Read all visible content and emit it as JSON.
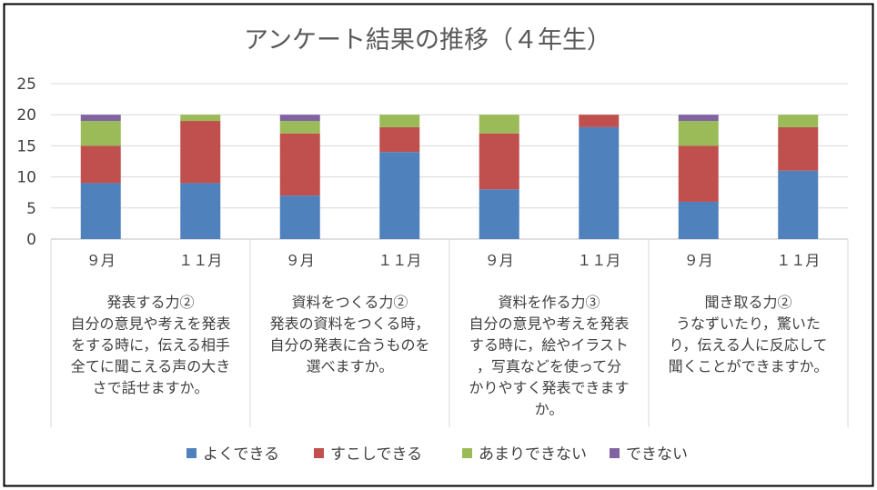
{
  "chart_data": {
    "type": "bar",
    "stacked": true,
    "title": "アンケート結果の推移（４年生）",
    "xlabel": "",
    "ylabel": "",
    "ylim": [
      0,
      25
    ],
    "yticks": [
      0,
      5,
      10,
      15,
      20,
      25
    ],
    "grid": true,
    "legend_position": "bottom",
    "groups": [
      {
        "lines": [
          "発表する力②",
          "自分の意見や考えを発表",
          "をする時に，伝える相手",
          "全てに聞こえる声の大き",
          "さで話せますか。"
        ]
      },
      {
        "lines": [
          "資料をつくる力②",
          "発表の資料をつくる時，",
          "自分の発表に合うものを",
          "選べますか。"
        ]
      },
      {
        "lines": [
          "資料を作る力③",
          "自分の意見や考えを発表",
          "する時に，絵やイラスト",
          "，写真などを使って分",
          "かりやすく発表できます",
          "か。"
        ]
      },
      {
        "lines": [
          "聞き取る力②",
          "うなずいたり，驚いた",
          "り，伝える人に反応して",
          "聞くことができますか。"
        ]
      }
    ],
    "categories": [
      "９月",
      "１１月",
      "９月",
      "１１月",
      "９月",
      "１１月",
      "９月",
      "１１月"
    ],
    "series": [
      {
        "name": "よくできる",
        "color": "#4F81BD",
        "values": [
          9,
          9,
          7,
          14,
          8,
          18,
          6,
          11
        ]
      },
      {
        "name": "すこしできる",
        "color": "#C0504D",
        "values": [
          6,
          10,
          10,
          4,
          9,
          2,
          9,
          7
        ]
      },
      {
        "name": "あまりできない",
        "color": "#9BBB59",
        "values": [
          4,
          1,
          2,
          2,
          3,
          0,
          4,
          2
        ]
      },
      {
        "name": "できない",
        "color": "#8064A2",
        "values": [
          1,
          0,
          1,
          0,
          0,
          0,
          1,
          0
        ]
      }
    ]
  }
}
